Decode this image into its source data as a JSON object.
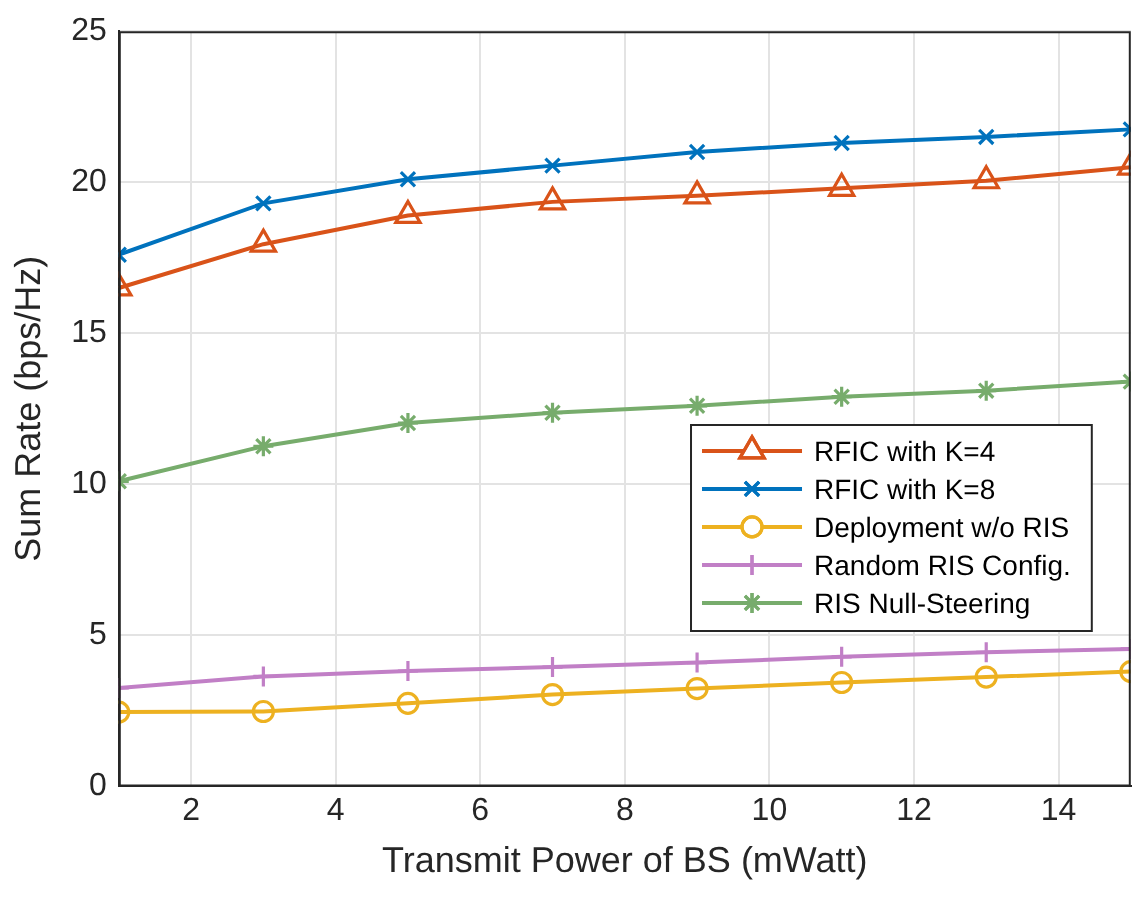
{
  "chart_data": {
    "type": "line",
    "xlabel": "Transmit Power of BS (mWatt)",
    "ylabel": "Sum Rate (bps/Hz)",
    "x": [
      1,
      3,
      5,
      7,
      9,
      11,
      13,
      15
    ],
    "xlim": [
      1,
      15
    ],
    "xticks": [
      2,
      4,
      6,
      8,
      10,
      12,
      14
    ],
    "ylim": [
      0,
      25
    ],
    "yticks": [
      0,
      5,
      10,
      15,
      20,
      25
    ],
    "grid": true,
    "legend": "right",
    "line_style": "solid",
    "series": [
      {
        "name": "RFIC with K=4",
        "color": "#d95319",
        "marker": "triangle",
        "values": [
          16.5,
          17.95,
          18.9,
          19.35,
          19.55,
          19.8,
          20.05,
          20.5
        ]
      },
      {
        "name": "RFIC with K=8",
        "color": "#0072bd",
        "marker": "x",
        "values": [
          17.6,
          19.3,
          20.1,
          20.55,
          21.0,
          21.3,
          21.5,
          21.75
        ]
      },
      {
        "name": "Deployment w/o RIS",
        "color": "#edb120",
        "marker": "circle",
        "values": [
          2.46,
          2.48,
          2.75,
          3.04,
          3.24,
          3.44,
          3.62,
          3.8
        ]
      },
      {
        "name": "Random RIS Config.",
        "color": "#c17fc6",
        "marker": "plus",
        "values": [
          3.26,
          3.64,
          3.82,
          3.95,
          4.1,
          4.29,
          4.44,
          4.55
        ]
      },
      {
        "name": "RIS Null-Steering",
        "color": "#77ac6c",
        "marker": "cross",
        "values": [
          10.1,
          11.26,
          12.03,
          12.37,
          12.6,
          12.9,
          13.1,
          13.4
        ]
      }
    ]
  }
}
